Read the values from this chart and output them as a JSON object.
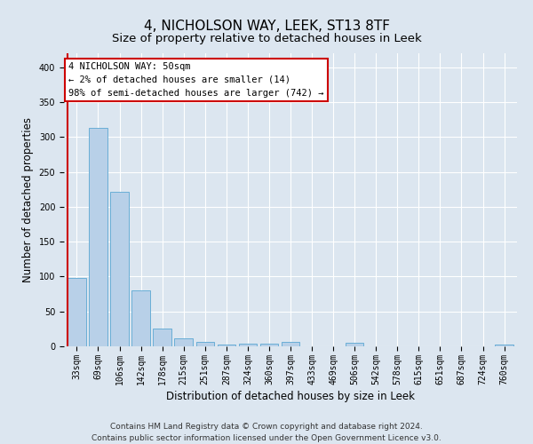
{
  "title": "4, NICHOLSON WAY, LEEK, ST13 8TF",
  "subtitle": "Size of property relative to detached houses in Leek",
  "xlabel": "Distribution of detached houses by size in Leek",
  "ylabel": "Number of detached properties",
  "categories": [
    "33sqm",
    "69sqm",
    "106sqm",
    "142sqm",
    "178sqm",
    "215sqm",
    "251sqm",
    "287sqm",
    "324sqm",
    "360sqm",
    "397sqm",
    "433sqm",
    "469sqm",
    "506sqm",
    "542sqm",
    "578sqm",
    "615sqm",
    "651sqm",
    "687sqm",
    "724sqm",
    "760sqm"
  ],
  "values": [
    98,
    313,
    222,
    80,
    25,
    12,
    6,
    3,
    4,
    4,
    6,
    0,
    0,
    5,
    0,
    0,
    0,
    0,
    0,
    0,
    3
  ],
  "bar_color": "#b8d0e8",
  "bar_edge_color": "#6aaed6",
  "background_color": "#dce6f0",
  "ylim": [
    0,
    420
  ],
  "yticks": [
    0,
    50,
    100,
    150,
    200,
    250,
    300,
    350,
    400
  ],
  "annotation_line1": "4 NICHOLSON WAY: 50sqm",
  "annotation_line2": "← 2% of detached houses are smaller (14)",
  "annotation_line3": "98% of semi-detached houses are larger (742) →",
  "ann_box_color": "#ffffff",
  "ann_border_color": "#cc0000",
  "vline_color": "#cc0000",
  "vline_x": 0.5,
  "footnote": "Contains HM Land Registry data © Crown copyright and database right 2024.\nContains public sector information licensed under the Open Government Licence v3.0.",
  "title_fontsize": 11,
  "subtitle_fontsize": 9.5,
  "label_fontsize": 8.5,
  "tick_fontsize": 7,
  "ann_fontsize": 7.5,
  "footnote_fontsize": 6.5
}
